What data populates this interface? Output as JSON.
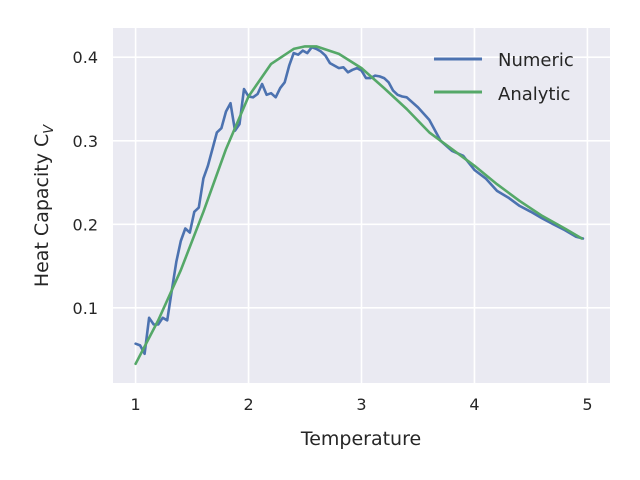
{
  "chart_data": {
    "type": "line",
    "xlabel": "Temperature",
    "ylabel_main": "Heat Capacity C",
    "ylabel_sub": "V",
    "xlim": [
      0.8,
      5.2
    ],
    "ylim": [
      0.01,
      0.435
    ],
    "xticks": [
      1,
      2,
      3,
      4,
      5
    ],
    "yticks": [
      0.1,
      0.2,
      0.3,
      0.4
    ],
    "grid": true,
    "legend_position": "top-right",
    "series": [
      {
        "name": "Numeric",
        "color": "#4c72b0",
        "x": [
          1.0,
          1.04,
          1.08,
          1.12,
          1.16,
          1.2,
          1.24,
          1.28,
          1.32,
          1.36,
          1.4,
          1.44,
          1.48,
          1.52,
          1.56,
          1.6,
          1.64,
          1.68,
          1.72,
          1.76,
          1.8,
          1.84,
          1.88,
          1.92,
          1.96,
          2.0,
          2.04,
          2.08,
          2.12,
          2.16,
          2.2,
          2.24,
          2.28,
          2.32,
          2.36,
          2.4,
          2.44,
          2.48,
          2.52,
          2.56,
          2.6,
          2.64,
          2.68,
          2.72,
          2.76,
          2.8,
          2.84,
          2.88,
          2.92,
          2.96,
          3.0,
          3.04,
          3.08,
          3.12,
          3.16,
          3.2,
          3.24,
          3.28,
          3.32,
          3.36,
          3.4,
          3.5,
          3.6,
          3.7,
          3.8,
          3.9,
          4.0,
          4.1,
          4.2,
          4.3,
          4.4,
          4.5,
          4.6,
          4.7,
          4.8,
          4.9,
          4.96
        ],
        "y": [
          0.057,
          0.055,
          0.045,
          0.088,
          0.08,
          0.08,
          0.088,
          0.085,
          0.12,
          0.155,
          0.18,
          0.195,
          0.19,
          0.215,
          0.22,
          0.255,
          0.27,
          0.29,
          0.31,
          0.315,
          0.335,
          0.345,
          0.312,
          0.32,
          0.362,
          0.353,
          0.352,
          0.356,
          0.368,
          0.355,
          0.357,
          0.352,
          0.363,
          0.37,
          0.39,
          0.405,
          0.403,
          0.408,
          0.405,
          0.412,
          0.41,
          0.407,
          0.402,
          0.393,
          0.39,
          0.387,
          0.388,
          0.382,
          0.385,
          0.387,
          0.384,
          0.375,
          0.375,
          0.378,
          0.377,
          0.375,
          0.37,
          0.36,
          0.355,
          0.353,
          0.352,
          0.34,
          0.325,
          0.3,
          0.288,
          0.282,
          0.265,
          0.255,
          0.24,
          0.232,
          0.222,
          0.215,
          0.207,
          0.2,
          0.193,
          0.185,
          0.183
        ]
      },
      {
        "name": "Analytic",
        "color": "#55a868",
        "x": [
          1.0,
          1.2,
          1.4,
          1.6,
          1.8,
          2.0,
          2.2,
          2.4,
          2.5,
          2.6,
          2.8,
          3.0,
          3.2,
          3.4,
          3.6,
          3.8,
          4.0,
          4.2,
          4.4,
          4.6,
          4.8,
          4.95
        ],
        "y": [
          0.033,
          0.085,
          0.145,
          0.215,
          0.29,
          0.353,
          0.392,
          0.41,
          0.413,
          0.413,
          0.404,
          0.387,
          0.363,
          0.338,
          0.31,
          0.29,
          0.27,
          0.248,
          0.228,
          0.21,
          0.195,
          0.183
        ]
      }
    ]
  }
}
